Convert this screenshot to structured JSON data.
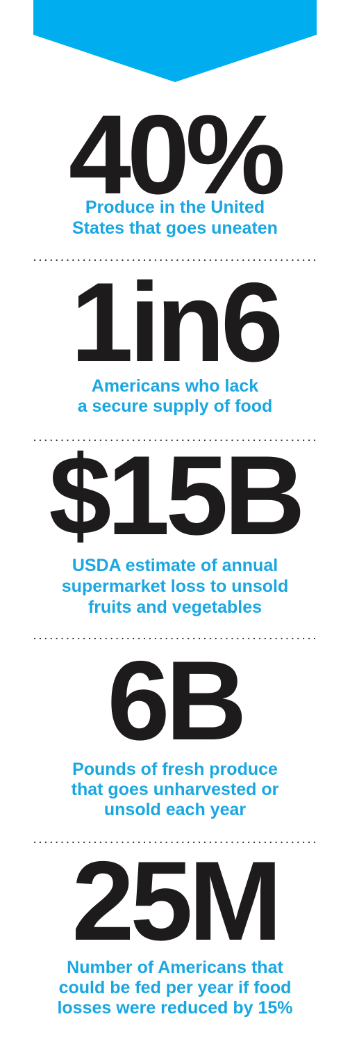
{
  "stats": [
    {
      "value": "40%",
      "description": [
        "Produce in the United",
        "States that goes uneaten"
      ]
    },
    {
      "value": "1in6",
      "description": [
        "Americans who lack",
        "a secure supply of food"
      ]
    },
    {
      "value": "$15B",
      "description": [
        "USDA estimate of annual",
        "supermarket loss to unsold",
        "fruits and vegetables"
      ]
    },
    {
      "value": "6B",
      "description": [
        "Pounds of fresh produce",
        "that goes unharvested or",
        "unsold each year"
      ]
    },
    {
      "value": "25M",
      "description": [
        "Number of Americans that",
        "could be fed per year if food",
        "losses were reduced by 15%"
      ]
    }
  ]
}
